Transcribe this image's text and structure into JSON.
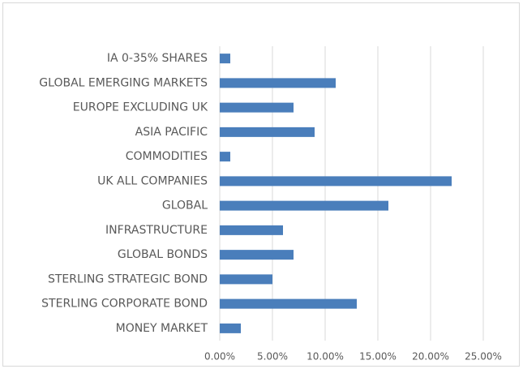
{
  "chart_data": {
    "type": "bar",
    "orientation": "horizontal",
    "categories": [
      "IA 0-35% SHARES",
      "GLOBAL EMERGING MARKETS",
      "EUROPE EXCLUDING UK",
      "ASIA PACIFIC",
      "COMMODITIES",
      "UK ALL COMPANIES",
      "GLOBAL",
      "INFRASTRUCTURE",
      "GLOBAL BONDS",
      "STERLING STRATEGIC BOND",
      "STERLING CORPORATE BOND",
      "MONEY MARKET"
    ],
    "values": [
      1,
      11,
      7,
      9,
      1,
      22,
      16,
      6,
      7,
      5,
      13,
      2
    ],
    "color": "#4a7ebb",
    "xlim": [
      0,
      25
    ],
    "xticks": [
      {
        "value": 0,
        "label": "0.00%"
      },
      {
        "value": 5,
        "label": "5.00%"
      },
      {
        "value": 10,
        "label": "10.00%"
      },
      {
        "value": 15,
        "label": "15.00%"
      },
      {
        "value": 20,
        "label": "20.00%"
      },
      {
        "value": 25,
        "label": "25.00%"
      }
    ],
    "grid": true
  }
}
